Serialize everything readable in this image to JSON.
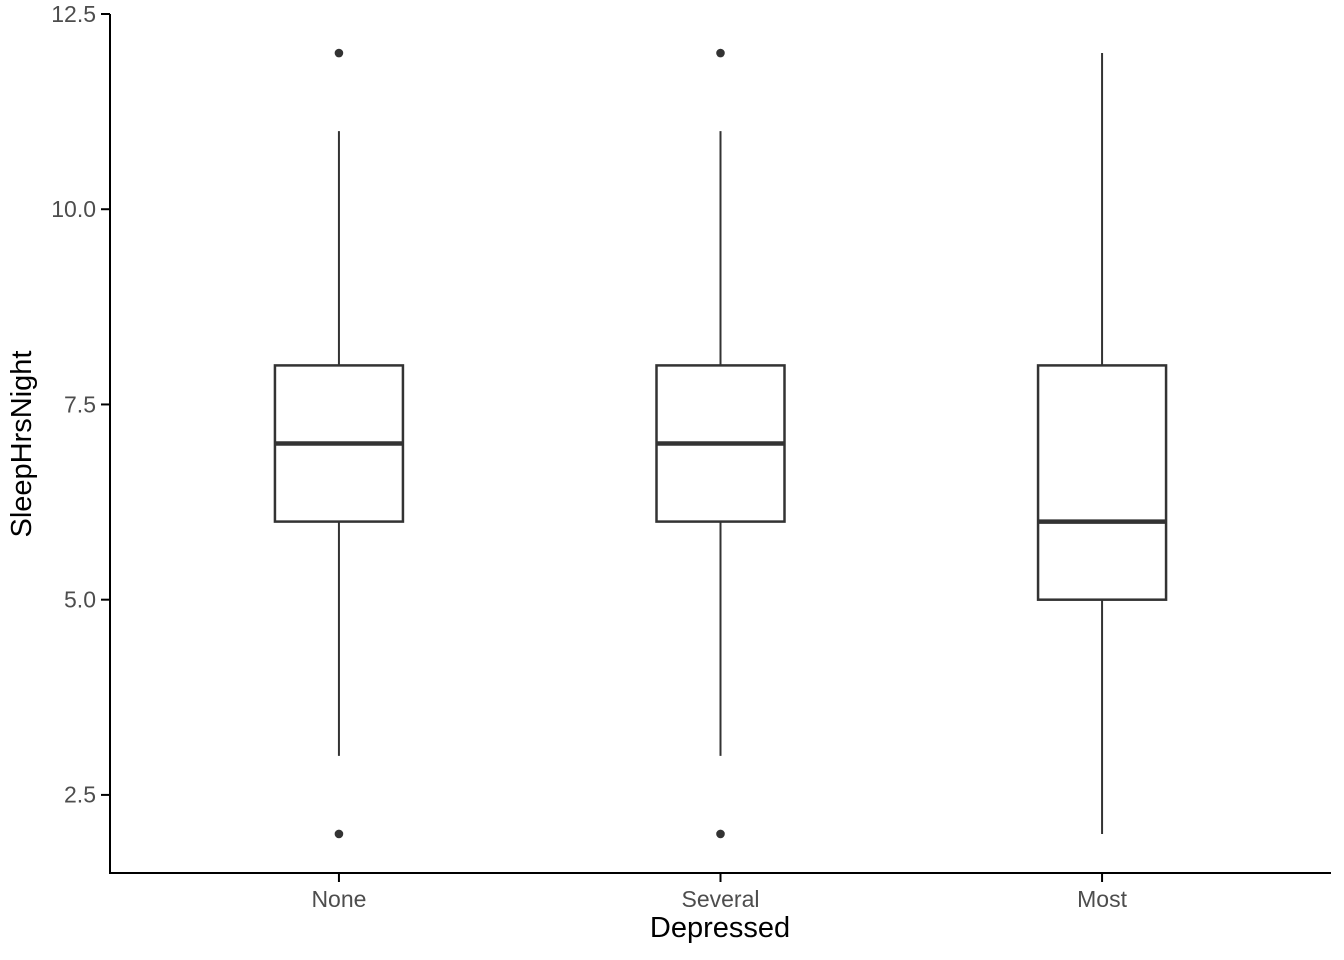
{
  "chart_data": {
    "type": "boxplot",
    "title": "",
    "xlabel": "Depressed",
    "ylabel": "SleepHrsNight",
    "categories": [
      "None",
      "Several",
      "Most"
    ],
    "series": [
      {
        "category": "None",
        "whisker_low": 3,
        "q1": 6,
        "median": 7,
        "q3": 8,
        "whisker_high": 11,
        "outliers": [
          2,
          12
        ]
      },
      {
        "category": "Several",
        "whisker_low": 3,
        "q1": 6,
        "median": 7,
        "q3": 8,
        "whisker_high": 11,
        "outliers": [
          2,
          12
        ]
      },
      {
        "category": "Most",
        "whisker_low": 2,
        "q1": 5,
        "median": 6,
        "q3": 8,
        "whisker_high": 12,
        "outliers": []
      }
    ],
    "y_ticks": [
      2.5,
      5.0,
      7.5,
      10.0,
      12.5
    ],
    "y_tick_labels": [
      "2.5",
      "5.0",
      "7.5",
      "10.0",
      "12.5"
    ],
    "ylim": [
      1.5,
      12.5
    ],
    "grid": "off",
    "legend": "none",
    "colors": {
      "axis_line": "#000000",
      "tick_mark": "#000000",
      "tick_label": "#4d4d4d",
      "axis_title": "#000000",
      "box_stroke": "#333333",
      "box_fill": "#ffffff",
      "outlier": "#333333",
      "background": "#ffffff"
    }
  }
}
